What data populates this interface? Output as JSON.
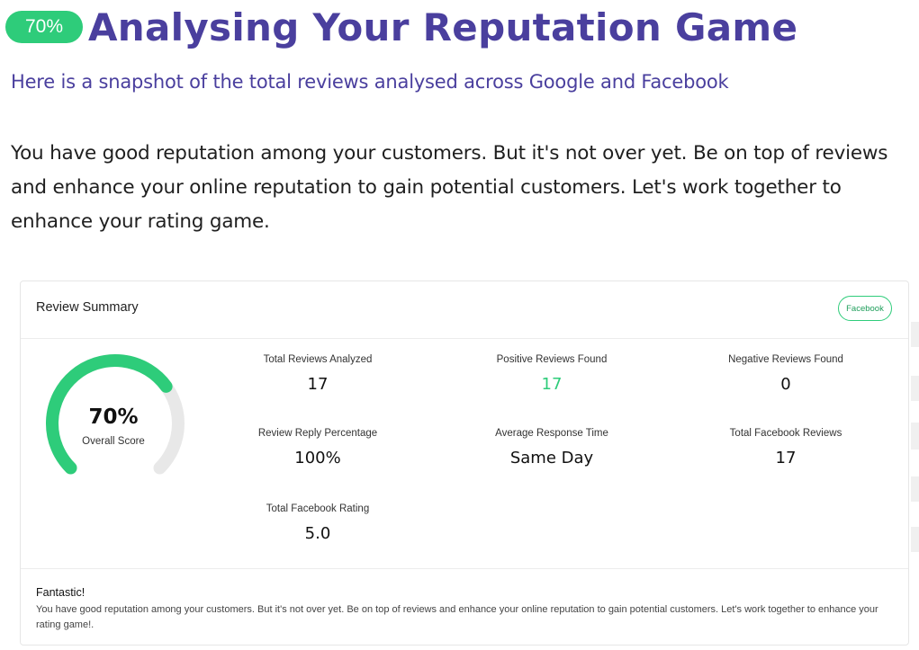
{
  "header": {
    "percent_badge": "70%",
    "title": "Analysing Your Reputation Game",
    "subtitle": "Here is a snapshot of the total reviews analysed across Google and Facebook"
  },
  "intro": "You have good reputation among your customers. But it's not over yet. Be on top of reviews and enhance your online reputation to gain potential customers. Let's work together to enhance your rating game.",
  "card": {
    "title": "Review Summary",
    "source_badge": "Facebook",
    "gauge": {
      "value_text": "70%",
      "label": "Overall Score",
      "fraction": 0.7,
      "fill_color": "#2ecc7a",
      "track_color": "#e8e8e8"
    },
    "stats": [
      {
        "label": "Total Reviews Analyzed",
        "value": "17"
      },
      {
        "label": "Positive Reviews Found",
        "value": "17",
        "color": "#2ecc7a"
      },
      {
        "label": "Negative Reviews Found",
        "value": "0"
      },
      {
        "label": "Review Reply Percentage",
        "value": "100%"
      },
      {
        "label": "Average Response Time",
        "value": "Same Day"
      },
      {
        "label": "Total Facebook Reviews",
        "value": "17"
      },
      {
        "label": "Total Facebook Rating",
        "value": "5.0"
      }
    ],
    "footer": {
      "title": "Fantastic!",
      "text": "You have good reputation among your customers. But it's not over yet. Be on top of reviews and enhance your online reputation to gain potential customers. Let's work together to enhance your rating game!."
    }
  },
  "colors": {
    "accent_purple": "#4a3f9e",
    "accent_green": "#2ecc7a"
  }
}
